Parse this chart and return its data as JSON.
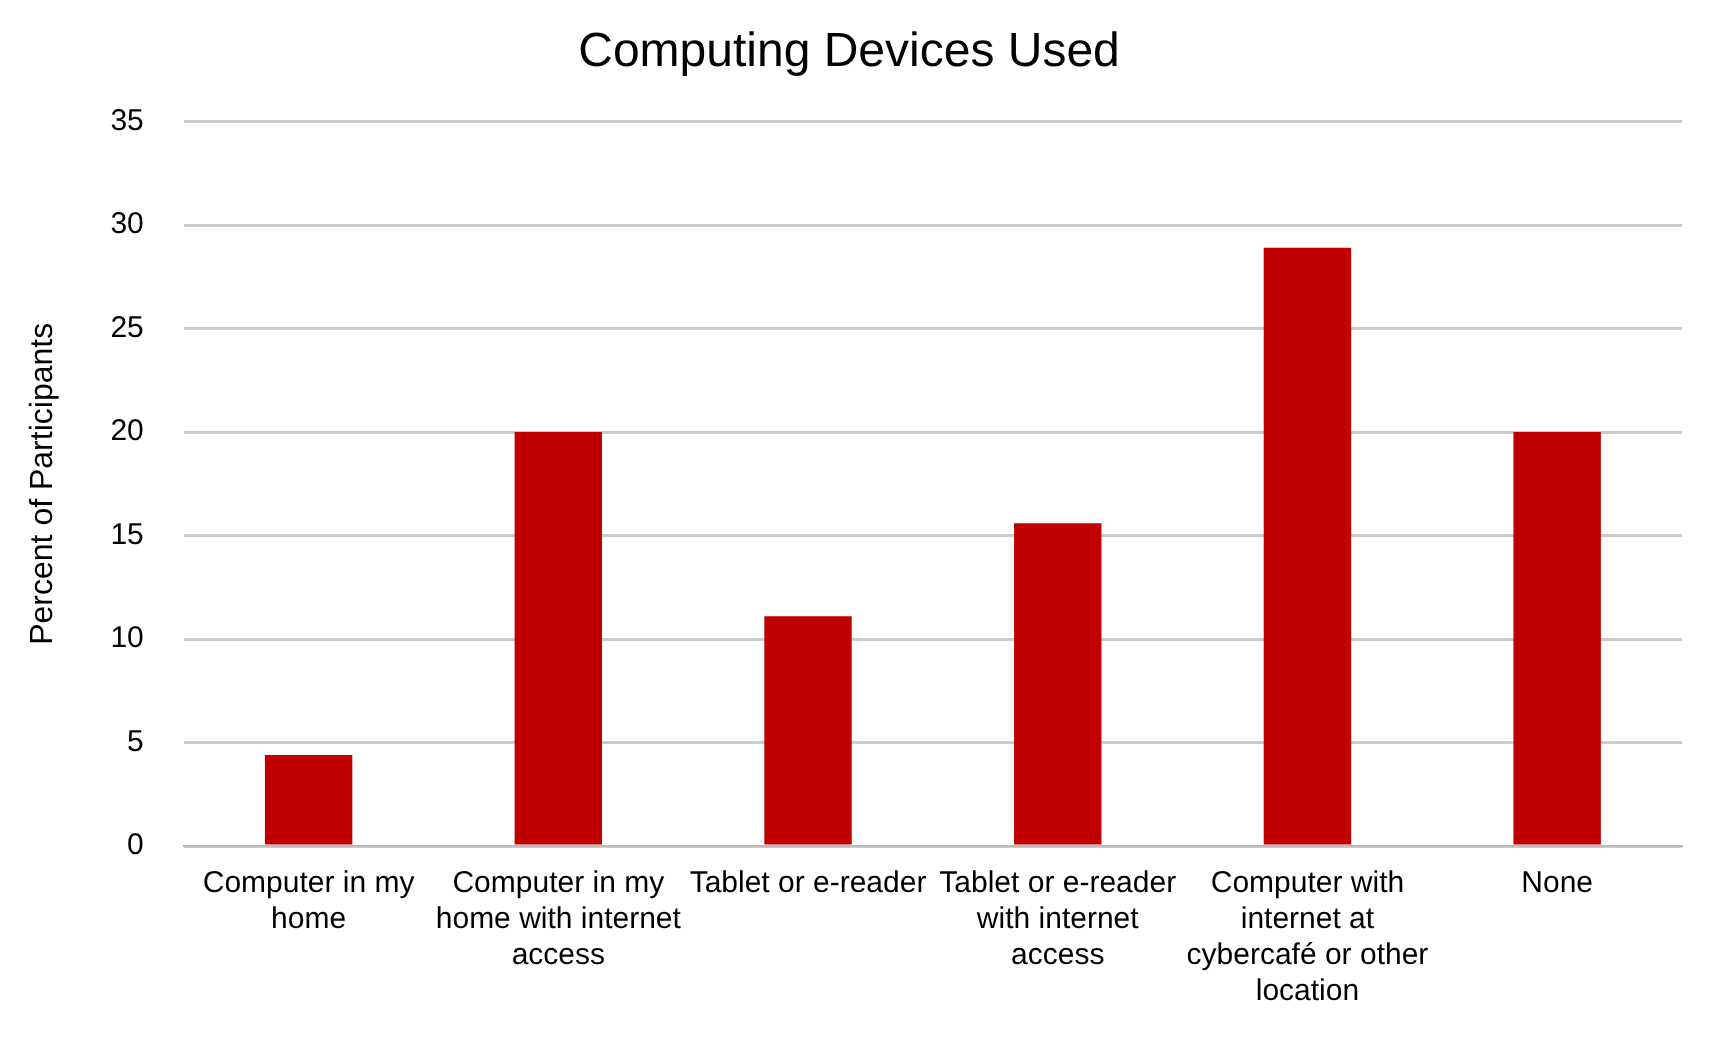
{
  "chart_data": {
    "type": "bar",
    "title": "Computing Devices Used",
    "ylabel": "Percent of Participants",
    "categories": [
      "Computer in my home",
      "Computer in my home with internet access",
      "Tablet or e-reader",
      "Tablet or e-reader with internet access",
      "Computer with internet at cybercafé or other location",
      "None"
    ],
    "values": [
      4.4,
      20,
      11.1,
      15.6,
      28.9,
      20
    ],
    "color": "#c00000",
    "ylim": [
      0,
      35
    ],
    "yticks": [
      0,
      5,
      10,
      15,
      20,
      25,
      30,
      35
    ],
    "grid": "y",
    "legend": false
  }
}
